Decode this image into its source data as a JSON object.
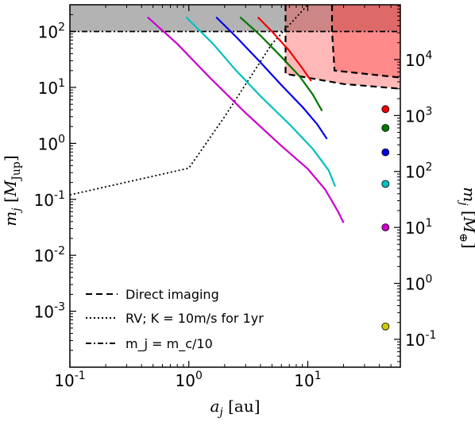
{
  "chart_data": {
    "type": "line",
    "xlabel": "a_j [au]",
    "ylabel_left": "m_j [M_Jup]",
    "ylabel_right": "m_j [M_⊕]",
    "x_scale": "log",
    "y_scale": "log",
    "xlim": [
      0.1,
      60
    ],
    "ylim": [
      0.0001,
      300
    ],
    "x_ticks": [
      {
        "value": 0.1,
        "base": "10",
        "exp": "-1"
      },
      {
        "value": 1,
        "base": "10",
        "exp": "0"
      },
      {
        "value": 10,
        "base": "10",
        "exp": "1"
      }
    ],
    "y_ticks_left": [
      {
        "value": 0.001,
        "base": "10",
        "exp": "-3"
      },
      {
        "value": 0.01,
        "base": "10",
        "exp": "-2"
      },
      {
        "value": 0.1,
        "base": "10",
        "exp": "-1"
      },
      {
        "value": 1,
        "base": "10",
        "exp": "0"
      },
      {
        "value": 10,
        "base": "10",
        "exp": "1"
      },
      {
        "value": 100,
        "base": "10",
        "exp": "2"
      }
    ],
    "y_ticks_right": [
      {
        "value_earth": 0.1,
        "base": "10",
        "exp": "-1"
      },
      {
        "value_earth": 1,
        "base": "10",
        "exp": "0"
      },
      {
        "value_earth": 10,
        "base": "10",
        "exp": "1"
      },
      {
        "value_earth": 100,
        "base": "10",
        "exp": "2"
      },
      {
        "value_earth": 1000,
        "base": "10",
        "exp": "3"
      },
      {
        "value_earth": 10000,
        "base": "10",
        "exp": "4"
      }
    ],
    "earth_per_jupiter": 317.8,
    "series": [
      {
        "color": "#cc00cc",
        "x": [
          0.45,
          0.8,
          1.5,
          3,
          6,
          10,
          14,
          18,
          20
        ],
        "y": [
          180,
          60,
          15,
          3.5,
          0.9,
          0.35,
          0.15,
          0.06,
          0.038
        ]
      },
      {
        "color": "#00c0c0",
        "x": [
          0.95,
          1.6,
          2.5,
          4,
          7,
          11,
          15,
          17
        ],
        "y": [
          180,
          60,
          20,
          7,
          2.2,
          0.8,
          0.33,
          0.17
        ]
      },
      {
        "color": "#0000ee",
        "x": [
          1.7,
          2.5,
          4,
          6,
          9,
          12,
          14.5
        ],
        "y": [
          180,
          80,
          28,
          11,
          4.5,
          2.2,
          1.2
        ]
      },
      {
        "color": "#007700",
        "x": [
          2.7,
          4,
          6,
          8.5,
          11,
          13.2
        ],
        "y": [
          180,
          85,
          35,
          16,
          7.5,
          3.8
        ]
      },
      {
        "color": "#ee0000",
        "x": [
          3.8,
          5,
          7,
          9,
          10.7
        ],
        "y": [
          180,
          100,
          45,
          22,
          13
        ]
      }
    ],
    "markers_earth": [
      {
        "color": "#ee0000",
        "y_earth": 1300
      },
      {
        "color": "#007700",
        "y_earth": 600
      },
      {
        "color": "#0000ee",
        "y_earth": 220
      },
      {
        "color": "#00c0c0",
        "y_earth": 60
      },
      {
        "color": "#cc00cc",
        "y_earth": 10
      },
      {
        "color": "#cccc00",
        "y_earth": 0.17
      }
    ],
    "markers_x": 45,
    "regions": {
      "gray_y_above": 100,
      "direct_imaging_outer": {
        "x": [
          6.5,
          6.5,
          6.5,
          20,
          60
        ],
        "y": [
          300,
          100,
          17.5,
          11.5,
          9.5
        ]
      },
      "direct_imaging_inner": {
        "x": [
          16,
          16,
          16.8,
          60
        ],
        "y": [
          300,
          100,
          20,
          15
        ]
      },
      "rv_line": {
        "x": [
          0.1,
          1,
          2,
          5,
          10,
          20
        ],
        "y": [
          0.12,
          0.36,
          3,
          60,
          300,
          1000
        ]
      },
      "mc_line_y": 100
    },
    "legend": [
      {
        "style": "dashed",
        "label": "Direct imaging"
      },
      {
        "style": "dotted",
        "label": "RV;  K = 10m/s for 1yr"
      },
      {
        "style": "dashdot",
        "label": "m_j = m_c/10"
      }
    ]
  }
}
